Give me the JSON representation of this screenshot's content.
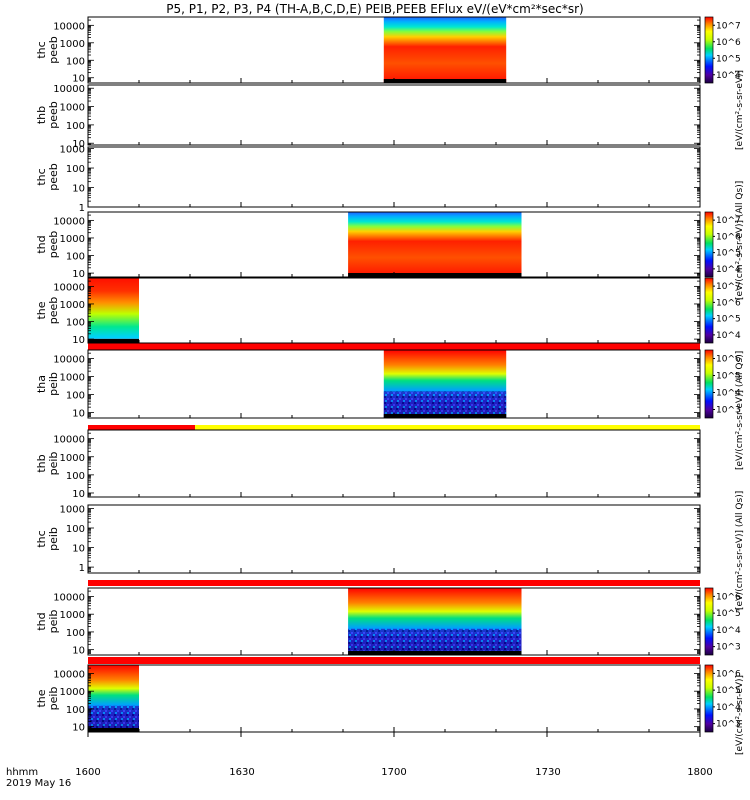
{
  "title": "P5, P1, P2, P3, P4 (TH-A,B,C,D,E) PEIB,PEEB EFlux eV/(eV*cm²*sec*sr)",
  "time_axis": {
    "labels": [
      "1600",
      "1630",
      "1700",
      "1730",
      "1800"
    ],
    "left_labels": [
      "hhmm",
      "2019 May 16"
    ]
  },
  "colorbar_labels": {
    "cb1": "[eV/(cm²-s-sr-eV)]",
    "cb2": "[eV/(cm²-s-sr-eV)] (All Qs)]",
    "cb3": "[eV/(cm²-s-sr-eV)] (All Qs)]",
    "cb4": "[eV/(cm²-s-sr-eV)] (All Qs)]",
    "cb5": "[eV/(cm²-s-sr-eV)]"
  },
  "chart_data": {
    "type": "heatmap",
    "title": "P5, P1, P2, P3, P4 (TH-A,B,C,D,E) PEIB,PEEB EFlux eV/(eV*cm²*sec*sr)",
    "x_range": [
      "16:00",
      "18:00"
    ],
    "x_ticks": [
      "1600",
      "1630",
      "1700",
      "1730",
      "1800"
    ],
    "y_scale": "log",
    "panels": [
      {
        "probe": "thc",
        "product": "peeb",
        "yticks": [
          "10",
          "100",
          "1000",
          "10000"
        ],
        "ylim": [
          5,
          30000
        ],
        "data_start": "16:58",
        "data_end": "17:22",
        "zlim": [
          "10^3",
          "10^7"
        ],
        "colorbar": true
      },
      {
        "probe": "thb",
        "product": "peeb",
        "yticks": [
          "10",
          "100",
          "1000",
          "10000"
        ],
        "ylim": [
          8,
          15000
        ],
        "data_start": null,
        "data_end": null,
        "colorbar": false
      },
      {
        "probe": "thc",
        "product": "peeb",
        "yticks": [
          "1",
          "10",
          "100",
          "1000"
        ],
        "ylim": [
          1,
          1200
        ],
        "data_start": null,
        "data_end": null,
        "colorbar": false
      },
      {
        "probe": "thd",
        "product": "peeb",
        "yticks": [
          "10",
          "100",
          "1000",
          "10000"
        ],
        "ylim": [
          6,
          30000
        ],
        "data_start": "16:51",
        "data_end": "17:25",
        "zlim": [
          "10^3",
          "10^7"
        ],
        "colorbar": true
      },
      {
        "probe": "the",
        "product": "peeb",
        "yticks": [
          "10",
          "100",
          "1000",
          "10000"
        ],
        "ylim": [
          6,
          30000
        ],
        "data_start": "16:00",
        "data_end": "16:10",
        "zlim": [
          "10^3",
          "10^7"
        ],
        "colorbar": true
      },
      {
        "probe": "tha",
        "product": "peib",
        "yticks": [
          "10",
          "100",
          "1000",
          "10000"
        ],
        "ylim": [
          5,
          30000
        ],
        "data_start": "16:58",
        "data_end": "17:22",
        "zlim": [
          "10^3",
          "10^6"
        ],
        "colorbar": true
      },
      {
        "probe": "thb",
        "product": "peib",
        "yticks": [
          "10",
          "100",
          "1000",
          "10000"
        ],
        "ylim": [
          6,
          30000
        ],
        "data_start": null,
        "data_end": null,
        "colorbar": false
      },
      {
        "probe": "thc",
        "product": "peib",
        "yticks": [
          "1",
          "10",
          "100",
          "1000"
        ],
        "ylim": [
          0.5,
          1500
        ],
        "data_start": null,
        "data_end": null,
        "colorbar": false
      },
      {
        "probe": "thd",
        "product": "peib",
        "yticks": [
          "10",
          "100",
          "1000",
          "10000"
        ],
        "ylim": [
          5,
          30000
        ],
        "data_start": "16:51",
        "data_end": "17:25",
        "zlim": [
          "10^3",
          "10^6"
        ],
        "colorbar": true
      },
      {
        "probe": "the",
        "product": "peib",
        "yticks": [
          "10",
          "100",
          "1000",
          "10000"
        ],
        "ylim": [
          5,
          30000
        ],
        "data_start": "16:00",
        "data_end": "16:10",
        "zlim": [
          "10^3",
          "10^6"
        ],
        "colorbar": true
      }
    ],
    "colorbar_ticks": {
      "peeb": [
        "10^4",
        "10^5",
        "10^6",
        "10^7"
      ],
      "peib": [
        "10^3",
        "10^4",
        "10^5",
        "10^6"
      ]
    }
  }
}
